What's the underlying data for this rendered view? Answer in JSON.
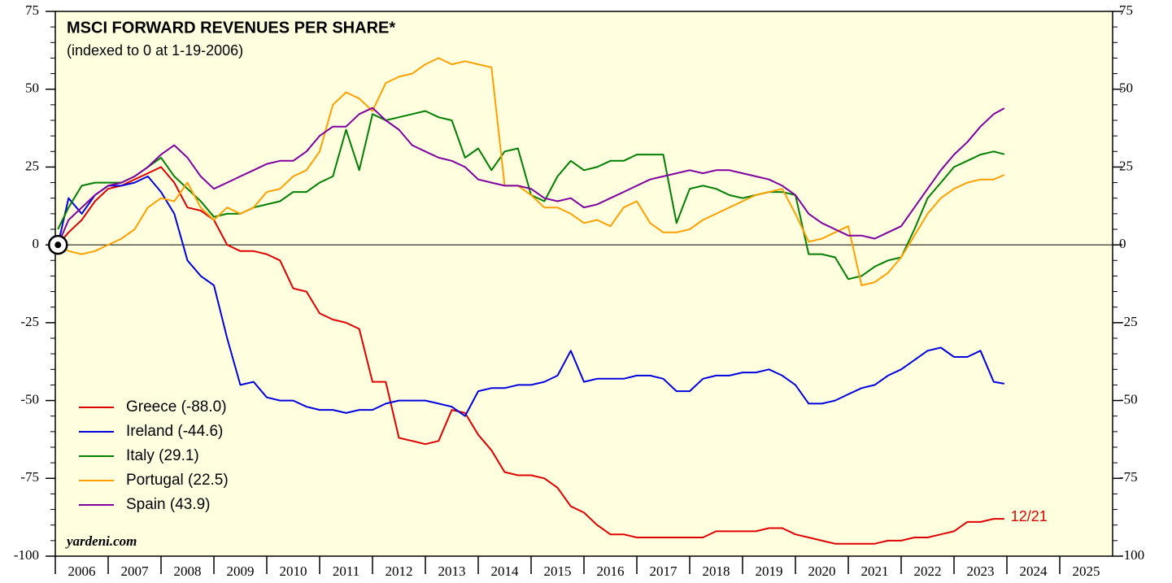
{
  "chart_data": {
    "type": "line",
    "title": "MSCI FORWARD REVENUES PER SHARE*",
    "subtitle": "(indexed to 0 at 1-19-2006)",
    "source": "yardeni.com",
    "annotation": "12/21",
    "xlim": [
      2006,
      2026
    ],
    "xticks": [
      {
        "value": 2006,
        "label": "2006"
      },
      {
        "value": 2007,
        "label": "2007"
      },
      {
        "value": 2008,
        "label": "2008"
      },
      {
        "value": 2009,
        "label": "2009"
      },
      {
        "value": 2010,
        "label": "2010"
      },
      {
        "value": 2011,
        "label": "2011"
      },
      {
        "value": 2012,
        "label": "2012"
      },
      {
        "value": 2013,
        "label": "2013"
      },
      {
        "value": 2014,
        "label": "2014"
      },
      {
        "value": 2015,
        "label": "2015"
      },
      {
        "value": 2016,
        "label": "2016"
      },
      {
        "value": 2017,
        "label": "2017"
      },
      {
        "value": 2018,
        "label": "2018"
      },
      {
        "value": 2019,
        "label": "2019"
      },
      {
        "value": 2020,
        "label": "2020"
      },
      {
        "value": 2021,
        "label": "2021"
      },
      {
        "value": 2022,
        "label": "2022"
      },
      {
        "value": 2023,
        "label": "2023"
      },
      {
        "value": 2024,
        "label": "2024"
      },
      {
        "value": 2025,
        "label": "2025"
      }
    ],
    "ylim": [
      -100,
      75
    ],
    "yticks": [
      75,
      50,
      25,
      0,
      -25,
      -50,
      -75,
      -100
    ],
    "grid": false,
    "legend": "lower left",
    "x": [
      2006.05,
      2006.25,
      2006.5,
      2006.75,
      2007,
      2007.25,
      2007.5,
      2007.75,
      2008,
      2008.25,
      2008.5,
      2008.75,
      2009,
      2009.25,
      2009.5,
      2009.75,
      2010,
      2010.25,
      2010.5,
      2010.75,
      2011,
      2011.25,
      2011.5,
      2011.75,
      2012,
      2012.25,
      2012.5,
      2012.75,
      2013,
      2013.25,
      2013.5,
      2013.75,
      2014,
      2014.25,
      2014.5,
      2014.75,
      2015,
      2015.25,
      2015.5,
      2015.75,
      2016,
      2016.25,
      2016.5,
      2016.75,
      2017,
      2017.25,
      2017.5,
      2017.75,
      2018,
      2018.25,
      2018.5,
      2018.75,
      2019,
      2019.25,
      2019.5,
      2019.75,
      2020,
      2020.25,
      2020.5,
      2020.75,
      2021,
      2021.25,
      2021.5,
      2021.75,
      2022,
      2022.25,
      2022.5,
      2022.75,
      2023,
      2023.25,
      2023.5,
      2023.75,
      2023.95
    ],
    "series": [
      {
        "name": "Greece (-88.0)",
        "color": "#e00000",
        "values": [
          0,
          4,
          8,
          14,
          18,
          19,
          21,
          23,
          25,
          20,
          12,
          11,
          8,
          0,
          -2,
          -2,
          -3,
          -5,
          -14,
          -15,
          -22,
          -24,
          -25,
          -27,
          -44,
          -44,
          -62,
          -63,
          -64,
          -63,
          -53,
          -54,
          -61,
          -66,
          -73,
          -74,
          -74,
          -75,
          -78,
          -84,
          -86,
          -90,
          -93,
          -93,
          -94,
          -94,
          -94,
          -94,
          -94,
          -94,
          -92,
          -92,
          -92,
          -92,
          -91,
          -91,
          -93,
          -94,
          -95,
          -96,
          -96,
          -96,
          -96,
          -95,
          -95,
          -94,
          -94,
          -93,
          -92,
          -89,
          -89,
          -88,
          -88
        ]
      },
      {
        "name": "Ireland (-44.6)",
        "color": "#0000e0",
        "values": [
          0,
          15,
          10,
          16,
          19,
          19,
          20,
          22,
          17,
          10,
          -5,
          -10,
          -13,
          -30,
          -45,
          -44,
          -49,
          -50,
          -50,
          -52,
          -53,
          -53,
          -54,
          -53,
          -53,
          -51,
          -50,
          -50,
          -50,
          -51,
          -52,
          -55,
          -47,
          -46,
          -46,
          -45,
          -45,
          -44,
          -42,
          -34,
          -44,
          -43,
          -43,
          -43,
          -42,
          -42,
          -43,
          -47,
          -47,
          -43,
          -42,
          -42,
          -41,
          -41,
          -40,
          -42,
          -45,
          -51,
          -51,
          -50,
          -48,
          -46,
          -45,
          -42,
          -40,
          -37,
          -34,
          -33,
          -36,
          -36,
          -34,
          -44,
          -44.6
        ]
      },
      {
        "name": "Italy (29.1)",
        "color": "#008000",
        "values": [
          5,
          12,
          19,
          20,
          20,
          20,
          22,
          25,
          28,
          22,
          18,
          14,
          9,
          10,
          10,
          12,
          13,
          14,
          17,
          17,
          20,
          22,
          37,
          24,
          42,
          40,
          41,
          42,
          43,
          41,
          40,
          28,
          31,
          24,
          30,
          31,
          16,
          14,
          22,
          27,
          24,
          25,
          27,
          27,
          29,
          29,
          29,
          7,
          18,
          19,
          18,
          16,
          15,
          16,
          17,
          17,
          16,
          -3,
          -3,
          -4,
          -11,
          -10,
          -7,
          -5,
          -4,
          5,
          15,
          20,
          25,
          27,
          29,
          30,
          29.1
        ]
      },
      {
        "name": "Portugal (22.5)",
        "color": "#ffa000",
        "values": [
          0,
          -2,
          -3,
          -2,
          0,
          2,
          5,
          12,
          15,
          14,
          20,
          12,
          8,
          12,
          10,
          12,
          17,
          18,
          22,
          24,
          30,
          45,
          49,
          47,
          43,
          52,
          54,
          55,
          58,
          60,
          58,
          59,
          58,
          57,
          19,
          19,
          16,
          12,
          12,
          10,
          7,
          8,
          6,
          12,
          14,
          7,
          4,
          4,
          5,
          8,
          10,
          12,
          14,
          16,
          17,
          18,
          10,
          1,
          2,
          4,
          6,
          -13,
          -12,
          -9,
          -4,
          3,
          10,
          15,
          18,
          20,
          21,
          21,
          22.5
        ]
      },
      {
        "name": "Spain (43.9)",
        "color": "#8000a0",
        "values": [
          0,
          8,
          12,
          16,
          19,
          20,
          22,
          25,
          29,
          32,
          28,
          22,
          18,
          20,
          22,
          24,
          26,
          27,
          27,
          30,
          35,
          38,
          38,
          42,
          44,
          40,
          37,
          32,
          30,
          28,
          27,
          25,
          21,
          20,
          19,
          19,
          18,
          15,
          14,
          15,
          12,
          13,
          15,
          17,
          19,
          21,
          22,
          23,
          24,
          23,
          24,
          24,
          23,
          22,
          21,
          19,
          16,
          10,
          7,
          5,
          3,
          3,
          2,
          4,
          6,
          12,
          18,
          24,
          29,
          33,
          38,
          42,
          43.9
        ]
      }
    ]
  }
}
